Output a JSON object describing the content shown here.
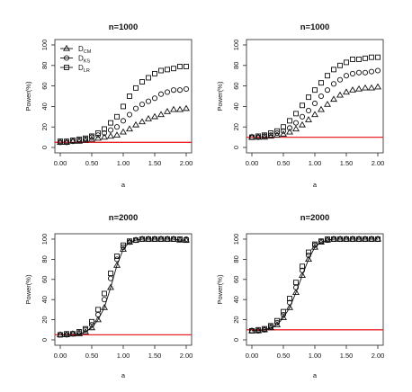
{
  "chart_data": [
    {
      "type": "line",
      "title": "n=1000",
      "xlabel": "a",
      "ylabel": "Power(%)",
      "xlim": [
        0,
        2
      ],
      "ylim": [
        0,
        100
      ],
      "x_ticks": [
        "0.00",
        "0.50",
        "1.00",
        "1.50",
        "2.00"
      ],
      "y_ticks": [
        "0",
        "20",
        "40",
        "60",
        "80",
        "100"
      ],
      "x": [
        0,
        0.1,
        0.2,
        0.3,
        0.4,
        0.5,
        0.6,
        0.7,
        0.8,
        0.9,
        1.0,
        1.1,
        1.2,
        1.3,
        1.4,
        1.5,
        1.6,
        1.7,
        1.8,
        1.9,
        2.0
      ],
      "legend": {
        "placement": "top-left",
        "entries": [
          {
            "base": "D",
            "sub": "CM"
          },
          {
            "base": "D",
            "sub": "KS"
          },
          {
            "base": "D",
            "sub": "LR"
          }
        ]
      },
      "reference_line": {
        "y": 5,
        "color": "#e8242a"
      },
      "series": [
        {
          "marker": "triangle",
          "plotted": "points",
          "values": [
            5,
            5,
            6,
            6,
            7,
            8,
            9,
            10,
            11,
            12,
            15,
            18,
            22,
            25,
            28,
            30,
            32,
            35,
            37,
            37,
            38
          ]
        },
        {
          "marker": "circle",
          "plotted": "points",
          "values": [
            5,
            5,
            6,
            7,
            8,
            10,
            12,
            14,
            17,
            20,
            26,
            32,
            38,
            42,
            45,
            48,
            52,
            54,
            56,
            56,
            57
          ]
        },
        {
          "marker": "square",
          "plotted": "points",
          "values": [
            6,
            6,
            7,
            8,
            9,
            11,
            14,
            18,
            24,
            30,
            40,
            50,
            58,
            64,
            68,
            72,
            75,
            76,
            77,
            79,
            79
          ]
        }
      ]
    },
    {
      "type": "line",
      "title": "n=1000",
      "xlabel": "a",
      "ylabel": "Power(%)",
      "xlim": [
        0,
        2
      ],
      "ylim": [
        0,
        100
      ],
      "x_ticks": [
        "0.00",
        "0.50",
        "1.00",
        "1.50",
        "2.00"
      ],
      "y_ticks": [
        "0",
        "20",
        "40",
        "60",
        "80",
        "100"
      ],
      "x": [
        0,
        0.1,
        0.2,
        0.3,
        0.4,
        0.5,
        0.6,
        0.7,
        0.8,
        0.9,
        1.0,
        1.1,
        1.2,
        1.3,
        1.4,
        1.5,
        1.6,
        1.7,
        1.8,
        1.9,
        2.0
      ],
      "reference_line": {
        "y": 10,
        "color": "#e8242a"
      },
      "series": [
        {
          "marker": "triangle",
          "plotted": "points",
          "values": [
            10,
            10,
            10,
            11,
            12,
            13,
            15,
            18,
            22,
            27,
            32,
            37,
            42,
            47,
            51,
            54,
            56,
            57,
            58,
            58,
            59
          ]
        },
        {
          "marker": "circle",
          "plotted": "points",
          "values": [
            10,
            10,
            11,
            12,
            14,
            16,
            19,
            24,
            30,
            36,
            43,
            50,
            56,
            62,
            66,
            70,
            72,
            73,
            73,
            74,
            75
          ]
        },
        {
          "marker": "square",
          "plotted": "points",
          "values": [
            10,
            11,
            12,
            14,
            16,
            20,
            26,
            33,
            41,
            49,
            56,
            63,
            70,
            76,
            80,
            83,
            86,
            86,
            87,
            88,
            88
          ]
        }
      ]
    },
    {
      "type": "line",
      "title": "n=2000",
      "xlabel": "a",
      "ylabel": "Power(%)",
      "xlim": [
        0,
        2
      ],
      "ylim": [
        0,
        100
      ],
      "x_ticks": [
        "0.00",
        "0.50",
        "1.00",
        "1.50",
        "2.00"
      ],
      "y_ticks": [
        "0",
        "20",
        "40",
        "60",
        "80",
        "100"
      ],
      "x": [
        0,
        0.1,
        0.2,
        0.3,
        0.4,
        0.5,
        0.6,
        0.7,
        0.8,
        0.9,
        1.0,
        1.1,
        1.2,
        1.3,
        1.4,
        1.5,
        1.6,
        1.7,
        1.8,
        1.9,
        2.0
      ],
      "reference_line": {
        "y": 5,
        "color": "#e8242a"
      },
      "series": [
        {
          "marker": "triangle",
          "plotted": "points+line",
          "values": [
            5,
            5,
            6,
            6,
            8,
            12,
            20,
            32,
            52,
            74,
            90,
            97,
            99,
            100,
            100,
            100,
            100,
            100,
            100,
            99,
            99
          ]
        },
        {
          "marker": "circle",
          "plotted": "points",
          "values": [
            5,
            5,
            6,
            7,
            10,
            15,
            25,
            40,
            61,
            80,
            92,
            97,
            99,
            100,
            100,
            100,
            100,
            100,
            100,
            100,
            100
          ]
        },
        {
          "marker": "square",
          "plotted": "points",
          "values": [
            5,
            6,
            6,
            8,
            11,
            18,
            30,
            46,
            66,
            83,
            94,
            98,
            99,
            100,
            100,
            100,
            100,
            100,
            100,
            100,
            99
          ]
        }
      ]
    },
    {
      "type": "line",
      "title": "n=2000",
      "xlabel": "a",
      "ylabel": "Power(%)",
      "xlim": [
        0,
        2
      ],
      "ylim": [
        0,
        100
      ],
      "x_ticks": [
        "0.00",
        "0.50",
        "1.00",
        "1.50",
        "2.00"
      ],
      "y_ticks": [
        "0",
        "20",
        "40",
        "60",
        "80",
        "100"
      ],
      "x": [
        0,
        0.1,
        0.2,
        0.3,
        0.4,
        0.5,
        0.6,
        0.7,
        0.8,
        0.9,
        1.0,
        1.1,
        1.2,
        1.3,
        1.4,
        1.5,
        1.6,
        1.7,
        1.8,
        1.9,
        2.0
      ],
      "reference_line": {
        "y": 10,
        "color": "#e8242a"
      },
      "series": [
        {
          "marker": "triangle",
          "plotted": "points+line",
          "values": [
            9,
            9,
            10,
            12,
            15,
            22,
            32,
            47,
            64,
            80,
            92,
            97,
            99,
            100,
            100,
            100,
            100,
            100,
            100,
            100,
            100
          ]
        },
        {
          "marker": "circle",
          "plotted": "points",
          "values": [
            9,
            9,
            10,
            13,
            17,
            25,
            37,
            52,
            69,
            84,
            94,
            98,
            99,
            100,
            100,
            100,
            100,
            100,
            100,
            100,
            100
          ]
        },
        {
          "marker": "square",
          "plotted": "points",
          "values": [
            9,
            10,
            11,
            14,
            19,
            28,
            41,
            57,
            73,
            87,
            95,
            98,
            100,
            100,
            100,
            100,
            100,
            100,
            100,
            100,
            100
          ]
        }
      ]
    }
  ]
}
